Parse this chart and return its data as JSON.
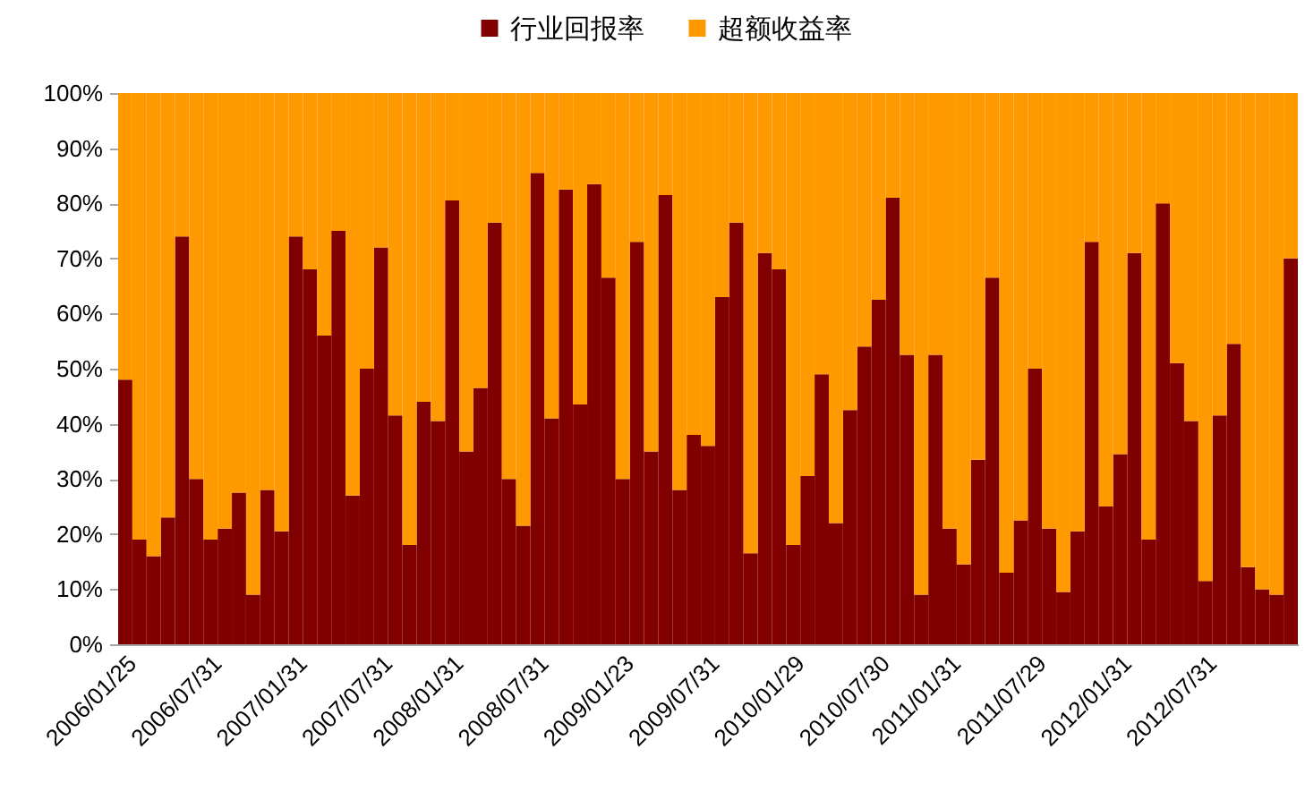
{
  "chart_data": {
    "type": "bar",
    "stacked": true,
    "categories": [
      "2006/01/25",
      null,
      null,
      null,
      null,
      null,
      "2006/07/31",
      null,
      null,
      null,
      null,
      null,
      "2007/01/31",
      null,
      null,
      null,
      null,
      null,
      "2007/07/31",
      null,
      null,
      null,
      null,
      "2008/01/31",
      null,
      null,
      null,
      null,
      null,
      "2008/07/31",
      null,
      null,
      null,
      null,
      null,
      "2009/01/23",
      null,
      null,
      null,
      null,
      null,
      "2009/07/31",
      null,
      null,
      null,
      null,
      null,
      "2010/01/29",
      null,
      null,
      null,
      null,
      null,
      "2010/07/30",
      null,
      null,
      null,
      null,
      "2011/01/31",
      null,
      null,
      null,
      null,
      null,
      "2011/07/29",
      null,
      null,
      null,
      null,
      null,
      "2012/01/31",
      null,
      null,
      null,
      null,
      null,
      "2012/07/31",
      null,
      null,
      null,
      null,
      null,
      null
    ],
    "series": [
      {
        "name": "行业回报率",
        "color": "#800000",
        "values": [
          48,
          19,
          16,
          23,
          74,
          30,
          19,
          21,
          27.5,
          9,
          28,
          20.5,
          74,
          68,
          56,
          75,
          27,
          50,
          72,
          41.5,
          18,
          44,
          40.5,
          80.5,
          35,
          46.5,
          76.5,
          30,
          21.5,
          85.5,
          41,
          82.5,
          43.5,
          83.5,
          66.5,
          30,
          73,
          35,
          81.5,
          28,
          38,
          36,
          63,
          76.5,
          16.5,
          71,
          68,
          18,
          30.5,
          49,
          22,
          42.5,
          54,
          62.5,
          81,
          52.5,
          9,
          52.5,
          21,
          14.5,
          33.5,
          66.5,
          13,
          22.5,
          50,
          21,
          9.5,
          20.5,
          73,
          25,
          34.5,
          71,
          19,
          80,
          51,
          40.5,
          11.5,
          41.5,
          54.5,
          14,
          10,
          9,
          70
        ]
      },
      {
        "name": "超额收益率",
        "color": "#ff9900",
        "values": [
          52,
          81,
          84,
          77,
          26,
          70,
          81,
          79,
          72.5,
          91,
          72,
          79.5,
          26,
          32,
          44,
          25,
          73,
          50,
          28,
          58.5,
          82,
          56,
          59.5,
          19.5,
          65,
          53.5,
          23.5,
          70,
          78.5,
          14.5,
          59,
          17.5,
          56.5,
          16.5,
          33.5,
          70,
          27,
          65,
          18.5,
          72,
          62,
          64,
          37,
          23.5,
          83.5,
          29,
          32,
          82,
          69.5,
          51,
          78,
          57.5,
          46,
          37.5,
          19,
          47.5,
          91,
          47.5,
          79,
          85.5,
          66.5,
          33.5,
          87,
          77.5,
          50,
          79,
          90.5,
          79.5,
          27,
          75,
          65.5,
          29,
          81,
          20,
          49,
          59.5,
          88.5,
          58.5,
          45.5,
          86,
          90,
          91,
          30
        ]
      }
    ],
    "ylim": [
      0,
      100
    ],
    "yticks": [
      {
        "value": 0,
        "label": "0%"
      },
      {
        "value": 10,
        "label": "10%"
      },
      {
        "value": 20,
        "label": "20%"
      },
      {
        "value": 30,
        "label": "30%"
      },
      {
        "value": 40,
        "label": "40%"
      },
      {
        "value": 50,
        "label": "50%"
      },
      {
        "value": 60,
        "label": "60%"
      },
      {
        "value": 70,
        "label": "70%"
      },
      {
        "value": 80,
        "label": "80%"
      },
      {
        "value": 90,
        "label": "90%"
      },
      {
        "value": 100,
        "label": "100%"
      }
    ],
    "grid": false,
    "legend": "top"
  }
}
